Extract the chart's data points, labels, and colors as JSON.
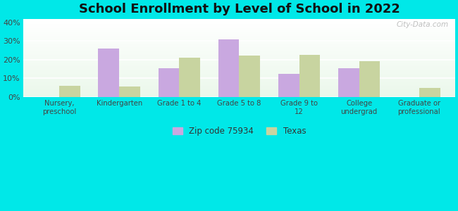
{
  "title": "School Enrollment by Level of School in 2022",
  "categories": [
    "Nursery,\npreschool",
    "Kindergarten",
    "Grade 1 to 4",
    "Grade 5 to 8",
    "Grade 9 to\n12",
    "College\nundergrad",
    "Graduate or\nprofessional"
  ],
  "zip_values": [
    0,
    26,
    15.5,
    31,
    12.5,
    15.5,
    0
  ],
  "texas_values": [
    6,
    5.5,
    21,
    22,
    22.5,
    19,
    5
  ],
  "zip_color": "#c9a8e0",
  "texas_color": "#c8d4a0",
  "background_color": "#00e8e8",
  "ylim": [
    0,
    42
  ],
  "yticks": [
    0,
    10,
    20,
    30,
    40
  ],
  "ytick_labels": [
    "0%",
    "10%",
    "20%",
    "30%",
    "40%"
  ],
  "zip_label": "Zip code 75934",
  "texas_label": "Texas",
  "title_fontsize": 13,
  "bar_width": 0.35,
  "watermark": "City-Data.com"
}
